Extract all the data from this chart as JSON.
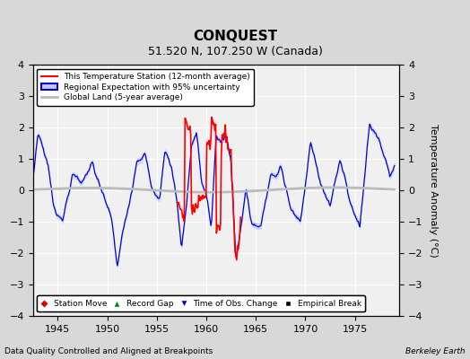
{
  "title": "CONQUEST",
  "subtitle": "51.520 N, 107.250 W (Canada)",
  "xlabel_bottom": "Data Quality Controlled and Aligned at Breakpoints",
  "xlabel_right": "Berkeley Earth",
  "ylabel": "Temperature Anomaly (°C)",
  "xlim": [
    1942.5,
    1979.5
  ],
  "ylim": [
    -4,
    4
  ],
  "yticks": [
    -4,
    -3,
    -2,
    -1,
    0,
    1,
    2,
    3,
    4
  ],
  "xticks": [
    1945,
    1950,
    1955,
    1960,
    1965,
    1970,
    1975
  ],
  "background_color": "#d8d8d8",
  "plot_bg_color": "#f0f0f0",
  "regional_fill_color": "#c0c8ff",
  "regional_line_color": "#0000dd",
  "station_color": "#ff0000",
  "global_color": "#bbbbbb",
  "grid_color": "#ffffff",
  "legend_marker_items": [
    {
      "label": "Station Move",
      "marker": "D",
      "color": "#dd0000"
    },
    {
      "label": "Record Gap",
      "marker": "^",
      "color": "#008800"
    },
    {
      "label": "Time of Obs. Change",
      "marker": "v",
      "color": "#0000cc"
    },
    {
      "label": "Empirical Break",
      "marker": "s",
      "color": "#000000"
    }
  ]
}
